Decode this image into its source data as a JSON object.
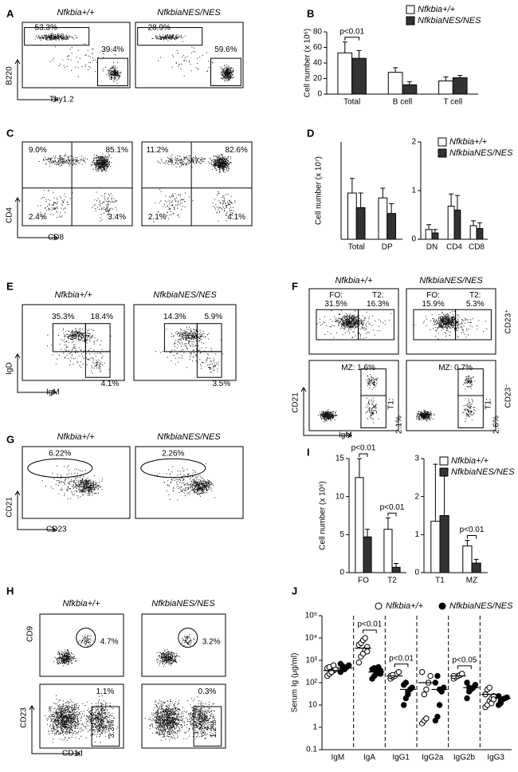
{
  "panel_labels": [
    "A",
    "B",
    "C",
    "D",
    "E",
    "F",
    "G",
    "H",
    "I",
    "J"
  ],
  "panel_A": {
    "genotypes": [
      "Nfkbia+/+",
      "NfkbiaNES/NES"
    ],
    "y_axis": "B220",
    "x_axis": "Thy1.2",
    "gates": [
      [
        "53.3%",
        "39.4%"
      ],
      [
        "28.9%",
        "59.6%"
      ]
    ]
  },
  "panel_C": {
    "y_axis": "CD4",
    "x_axis": "CD8",
    "quadrants": [
      [
        "9.0%",
        "85.1%",
        "2.4%",
        "3.4%"
      ],
      [
        "11.2%",
        "82.6%",
        "2.1%",
        "4.1%"
      ]
    ]
  },
  "panel_E": {
    "genotypes": [
      "Nfkbia+/+",
      "NfkbiaNES/NES"
    ],
    "y_axis": "IgD",
    "x_axis": "IgM",
    "gates": [
      [
        "35.3%",
        "18.4%",
        "4.1%"
      ],
      [
        "14.3%",
        "5.9%",
        "3.5%"
      ]
    ]
  },
  "panel_F": {
    "genotypes": [
      "Nfkbia+/+",
      "NfkbiaNES/NES"
    ],
    "y_axis": "CD21",
    "x_axis": "IgM",
    "rows": [
      "CD23⁺",
      "CD23⁻"
    ],
    "top": [
      [
        "FO:",
        "31.5%",
        "T2:",
        "16.3%"
      ],
      [
        "FO:",
        "15.9%",
        "T2:",
        "5.3%"
      ]
    ],
    "bottom": [
      [
        "MZ: 1.6%",
        "T1:",
        "2.1%"
      ],
      [
        "MZ: 0.7%",
        "T1:",
        "2.6%"
      ]
    ]
  },
  "panel_G": {
    "genotypes": [
      "Nfkbia+/+",
      "NfkbiaNES/NES"
    ],
    "y_axis": "CD21",
    "x_axis": "CD23",
    "gates": [
      "6.22%",
      "2.26%"
    ]
  },
  "panel_H": {
    "genotypes": [
      "Nfkbia+/+",
      "NfkbiaNES/NES"
    ],
    "y_axis_top": "CD9",
    "y_axis_bottom": "CD23",
    "x_axis": "CD1d",
    "top": [
      "4.7%",
      "3.2%"
    ],
    "bottom": [
      [
        "1.1%",
        "3.3%"
      ],
      [
        "0.3%",
        "1.2%"
      ]
    ]
  },
  "chart_data": [
    {
      "type": "bar",
      "y_label": "Cell number (x 10⁶)",
      "categories": [
        "Total",
        "B cell",
        "T cell"
      ],
      "series": [
        {
          "name": "Nfkbia+/+",
          "color": "#ffffff",
          "values": [
            53,
            28,
            17
          ],
          "errors": [
            14,
            6,
            5
          ]
        },
        {
          "name": "NfkbiaNES/NES",
          "color": "#333333",
          "values": [
            46,
            12,
            21
          ],
          "errors": [
            10,
            4,
            3
          ]
        }
      ],
      "ylim": [
        0,
        80
      ],
      "yticks": [
        0,
        20,
        40,
        60,
        80
      ],
      "annotations": [
        "p<0.01"
      ],
      "legend": "upper right"
    },
    {
      "type": "bar",
      "y_label": "Cell number (x 10⁷)",
      "categories": [
        "Total",
        "DP"
      ],
      "series": [
        {
          "color": "#ffffff",
          "values": [
            9.5,
            8.5
          ],
          "errors": [
            3,
            2
          ]
        },
        {
          "color": "#333333",
          "values": [
            6.5,
            5.3
          ],
          "errors": [
            3,
            2
          ]
        }
      ],
      "ylim": [
        0,
        20
      ],
      "yticks": []
    },
    {
      "type": "bar",
      "categories": [
        "DN",
        "CD4",
        "CD8"
      ],
      "series": [
        {
          "name": "Nfkbia+/+",
          "color": "#ffffff",
          "values": [
            0.2,
            0.68,
            0.28
          ],
          "errors": [
            0.1,
            0.25,
            0.1
          ]
        },
        {
          "name": "NfkbiaNES/NES",
          "color": "#333333",
          "values": [
            0.13,
            0.6,
            0.22
          ],
          "errors": [
            0.07,
            0.3,
            0.12
          ]
        }
      ],
      "ylim": [
        0,
        2
      ],
      "yticks": [
        0,
        1,
        2
      ],
      "legend": "upper right"
    },
    {
      "type": "bar",
      "y_label": "Cell number (x 10⁶)",
      "categories": [
        "FO",
        "T2"
      ],
      "series": [
        {
          "color": "#ffffff",
          "values": [
            12.5,
            5.7
          ],
          "errors": [
            2.5,
            1.5
          ]
        },
        {
          "color": "#333333",
          "values": [
            4.7,
            0.7
          ],
          "errors": [
            1,
            0.5
          ]
        }
      ],
      "ylim": [
        0,
        15
      ],
      "yticks": [
        0,
        5,
        10,
        15
      ],
      "annotations": [
        "p<0.01",
        "p<0.01"
      ]
    },
    {
      "type": "bar",
      "categories": [
        "T1",
        "MZ"
      ],
      "series": [
        {
          "name": "Nfkbia+/+",
          "color": "#ffffff",
          "values": [
            1.35,
            0.7
          ],
          "errors": [
            1.5,
            0.15
          ]
        },
        {
          "name": "NfkbiaNES/NES",
          "color": "#333333",
          "values": [
            1.5,
            0.25
          ],
          "errors": [
            1.1,
            0.1
          ]
        }
      ],
      "ylim": [
        0,
        3
      ],
      "yticks": [
        0,
        1,
        2,
        3
      ],
      "annotations": [
        "p<0.01"
      ],
      "legend": "upper right"
    },
    {
      "type": "scatter",
      "y_label": "Serum Ig (μg/ml)",
      "log_y": true,
      "categories": [
        "IgM",
        "IgA",
        "IgG1",
        "IgG2a",
        "IgG2b",
        "IgG3"
      ],
      "series": [
        {
          "name": "Nfkbia+/+",
          "color": "#ffffff",
          "values": [
            [
              200,
              250,
              300,
              350,
              400,
              450,
              500,
              300,
              600
            ],
            [
              800,
              1500,
              2000,
              3000,
              4000,
              5000,
              6000,
              8000,
              10000,
              2500
            ],
            [
              150,
              180,
              200,
              250,
              300,
              200,
              220
            ],
            [
              1.5,
              2,
              2.5,
              100,
              200,
              300,
              30,
              50
            ],
            [
              150,
              180,
              200,
              220,
              250,
              200
            ],
            [
              8,
              10,
              15,
              20,
              25,
              30,
              50,
              60,
              12,
              18
            ]
          ],
          "medians": [
            350,
            3500,
            200,
            100,
            200,
            30
          ]
        },
        {
          "name": "NfkbiaNES/NES",
          "color": "#000000",
          "values": [
            [
              300,
              400,
              450,
              500,
              600,
              700,
              550,
              400
            ],
            [
              150,
              200,
              250,
              300,
              350,
              400,
              450,
              300,
              500,
              250
            ],
            [
              10,
              20,
              30,
              50,
              60,
              80,
              100,
              40
            ],
            [
              2,
              3,
              10,
              40,
              60,
              100,
              200,
              50
            ],
            [
              20,
              40,
              50,
              60,
              80,
              100,
              60
            ],
            [
              10,
              15,
              18,
              20,
              22,
              25,
              12
            ]
          ],
          "medians": [
            450,
            300,
            50,
            50,
            60,
            20
          ]
        }
      ],
      "ylim": [
        0.1,
        100000
      ],
      "yticks": [
        0.1,
        1,
        10,
        {
          "value": 100,
          "label": "10²"
        },
        {
          "value": 1000,
          "label": "10³"
        },
        {
          "value": 10000,
          "label": "10⁴"
        },
        {
          "value": 100000,
          "label": "10⁵"
        }
      ],
      "annotations": [
        "p<0.01",
        "p<0.01",
        "p<0.05"
      ],
      "legend": "top"
    }
  ]
}
